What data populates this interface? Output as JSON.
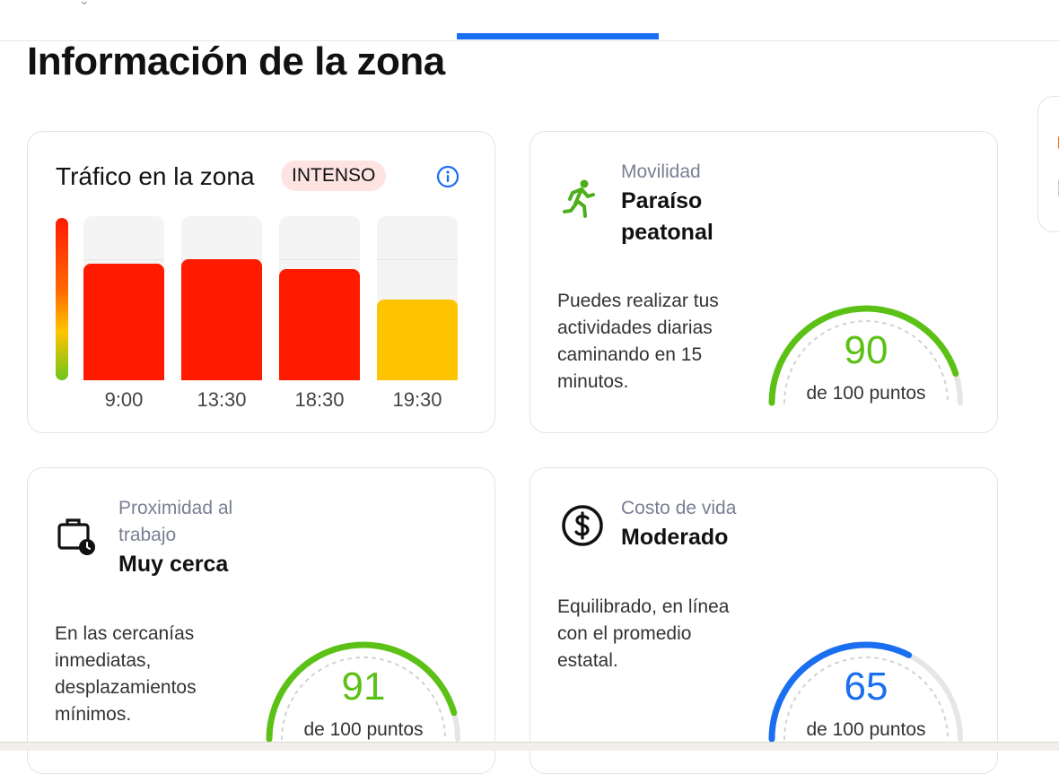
{
  "page": {
    "title": "Información de la zona"
  },
  "traffic": {
    "title": "Tráfico en la zona",
    "badge": "INTENSO",
    "info_icon": "info-circle-icon",
    "colors": {
      "high": "#ff1a00",
      "medium": "#ffc400",
      "low": "#6ec51b"
    },
    "chart_data": {
      "type": "bar",
      "categories": [
        "9:00",
        "13:30",
        "18:30",
        "19:30"
      ],
      "values": [
        0.71,
        0.74,
        0.68,
        0.49
      ],
      "value_unit": "fraction of max traffic",
      "bar_colors": [
        "#ff1a00",
        "#ff1a00",
        "#ff1a00",
        "#ffc400"
      ],
      "ylim": [
        0,
        1
      ],
      "grid": true,
      "title": "",
      "xlabel": "",
      "ylabel": ""
    }
  },
  "cards": {
    "movilidad": {
      "icon": "walking-person-icon",
      "label": "Movilidad",
      "value_line1": "Paraíso",
      "value_line2": "peatonal",
      "desc": [
        "Puedes realizar tus",
        "actividades diarias",
        "caminando en 15",
        "minutos."
      ],
      "score": "90",
      "score_fraction": 0.9,
      "score_sub": "de 100 puntos",
      "color": "#5cc116"
    },
    "trabajo": {
      "icon": "briefcase-clock-icon",
      "label_line1": "Proximidad al",
      "label_line2": "trabajo",
      "value": "Muy cerca",
      "desc": [
        "En las cercanías",
        "inmediatas,",
        "desplazamientos",
        "mínimos."
      ],
      "score": "91",
      "score_fraction": 0.91,
      "score_sub": "de 100 puntos",
      "color": "#5cc116"
    },
    "costo": {
      "icon": "dollar-circle-icon",
      "label": "Costo de vida",
      "value": "Moderado",
      "desc": [
        "Equilibrado, en línea",
        "con el promedio",
        "estatal."
      ],
      "score": "65",
      "score_fraction": 0.65,
      "score_sub": "de 100 puntos",
      "color": "#1a6ef0"
    }
  }
}
